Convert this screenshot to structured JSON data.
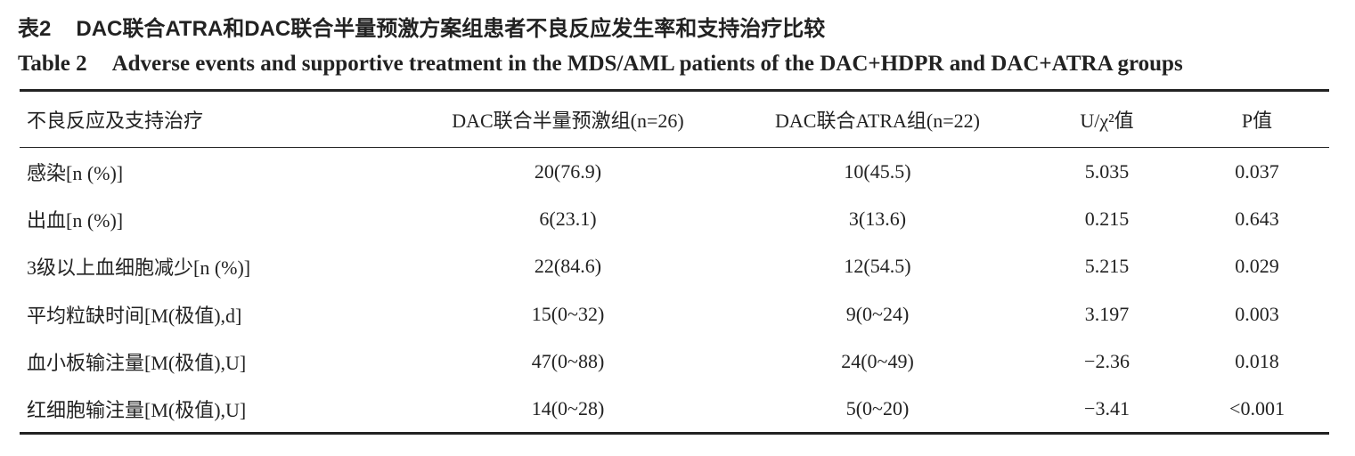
{
  "title_cn": {
    "label": "表2",
    "text": "DAC联合ATRA和DAC联合半量预激方案组患者不良反应发生率和支持治疗比较"
  },
  "title_en": {
    "label": "Table 2",
    "text": "Adverse events and supportive treatment in the MDS/AML patients of the DAC+HDPR and DAC+ATRA groups"
  },
  "table": {
    "header": [
      "不良反应及支持治疗",
      "DAC联合半量预激组(n=26)",
      "DAC联合ATRA组(n=22)",
      "U/χ²值",
      "P值"
    ],
    "rows": [
      [
        "感染[n (%)]",
        "20(76.9)",
        "10(45.5)",
        "5.035",
        "0.037"
      ],
      [
        "出血[n (%)]",
        "6(23.1)",
        "3(13.6)",
        "0.215",
        "0.643"
      ],
      [
        "3级以上血细胞减少[n (%)]",
        "22(84.6)",
        "12(54.5)",
        "5.215",
        "0.029"
      ],
      [
        "平均粒缺时间[M(极值),d]",
        "15(0~32)",
        "9(0~24)",
        "3.197",
        "0.003"
      ],
      [
        "血小板输注量[M(极值),U]",
        "47(0~88)",
        "24(0~49)",
        "−2.36",
        "0.018"
      ],
      [
        "红细胞输注量[M(极值),U]",
        "14(0~28)",
        "5(0~20)",
        "−3.41",
        "<0.001"
      ]
    ]
  }
}
